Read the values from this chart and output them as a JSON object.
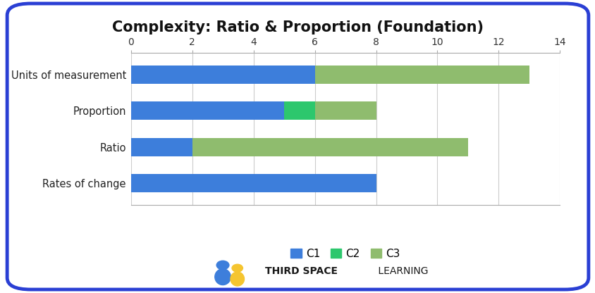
{
  "title": "Complexity: Ratio & Proportion (Foundation)",
  "categories": [
    "Units of measurement",
    "Proportion",
    "Ratio",
    "Rates of change"
  ],
  "c1_values": [
    6,
    5,
    2,
    8
  ],
  "c2_values": [
    0,
    1,
    0,
    0
  ],
  "c3_values": [
    7,
    2,
    9,
    0
  ],
  "c1_color": "#3d7edb",
  "c2_color": "#2dc76d",
  "c3_color": "#8fbc6e",
  "xlim": [
    0,
    14
  ],
  "xticks": [
    0,
    2,
    4,
    6,
    8,
    10,
    12,
    14
  ],
  "background_color": "#ffffff",
  "border_color": "#2a3fd4",
  "title_fontsize": 15,
  "label_fontsize": 10.5,
  "tick_fontsize": 10,
  "legend_labels": [
    "C1",
    "C2",
    "C3"
  ],
  "bar_height": 0.5
}
